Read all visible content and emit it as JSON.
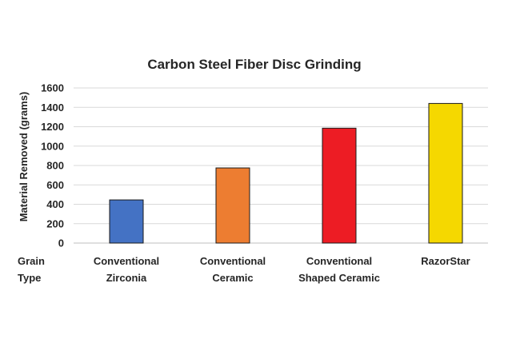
{
  "chart_data": {
    "type": "bar",
    "title": "Carbon Steel Fiber Disc Grinding",
    "ylabel": "Material Removed (grams)",
    "xlabel": [
      "Grain",
      "Type"
    ],
    "categories": [
      [
        "Conventional",
        "Zirconia"
      ],
      [
        "Conventional",
        "Ceramic"
      ],
      [
        "Conventional",
        "Shaped Ceramic"
      ],
      [
        "RazorStar"
      ]
    ],
    "values": [
      445,
      775,
      1185,
      1440
    ],
    "bar_colors": [
      "#4472c4",
      "#ed7d31",
      "#ed1c24",
      "#f5d800"
    ],
    "ylim": [
      0,
      1600
    ],
    "yticks": [
      0,
      200,
      400,
      600,
      800,
      1000,
      1200,
      1400,
      1600
    ],
    "grid": true,
    "legend": "none"
  }
}
